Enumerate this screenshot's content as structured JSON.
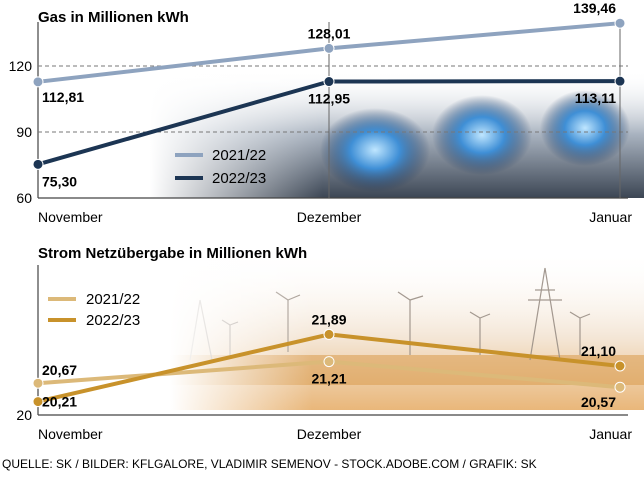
{
  "chart_data": [
    {
      "type": "line",
      "title": "Gas in Millionen kWh",
      "categories": [
        "November",
        "Dezember",
        "Januar"
      ],
      "ylim": [
        60,
        140
      ],
      "yticks": [
        "120",
        "90",
        "60"
      ],
      "grid": true,
      "legend_position": "bottom-center",
      "series": [
        {
          "name": "2021/22",
          "values": [
            112.81,
            128.01,
            139.46
          ],
          "labels": [
            "112,81",
            "128,01",
            "139,46"
          ],
          "color": "#8ea3bf"
        },
        {
          "name": "2022/23",
          "values": [
            75.3,
            112.95,
            113.11
          ],
          "labels": [
            "75,30",
            "112,95",
            "113,11"
          ],
          "color": "#1c3553"
        }
      ]
    },
    {
      "type": "line",
      "title": "Strom Netzübergabe in Millionen kWh",
      "categories": [
        "November",
        "Dezember",
        "Januar"
      ],
      "ylim": [
        20,
        22
      ],
      "yticks": [
        "20"
      ],
      "grid": false,
      "legend_position": "top-left",
      "series": [
        {
          "name": "2021/22",
          "values": [
            20.67,
            21.21,
            20.57
          ],
          "labels": [
            "20,67",
            "21,21",
            "20,57"
          ],
          "color": "#dcb979"
        },
        {
          "name": "2022/23",
          "values": [
            20.21,
            21.89,
            21.1
          ],
          "labels": [
            "20,21",
            "21,89",
            "21,10"
          ],
          "color": "#c8922b"
        }
      ]
    }
  ],
  "source": "QUELLE: SK / BILDER:  KFLGALORE, VLADIMIR SEMENOV - STOCK.ADOBE.COM / GRAFIK: SK"
}
